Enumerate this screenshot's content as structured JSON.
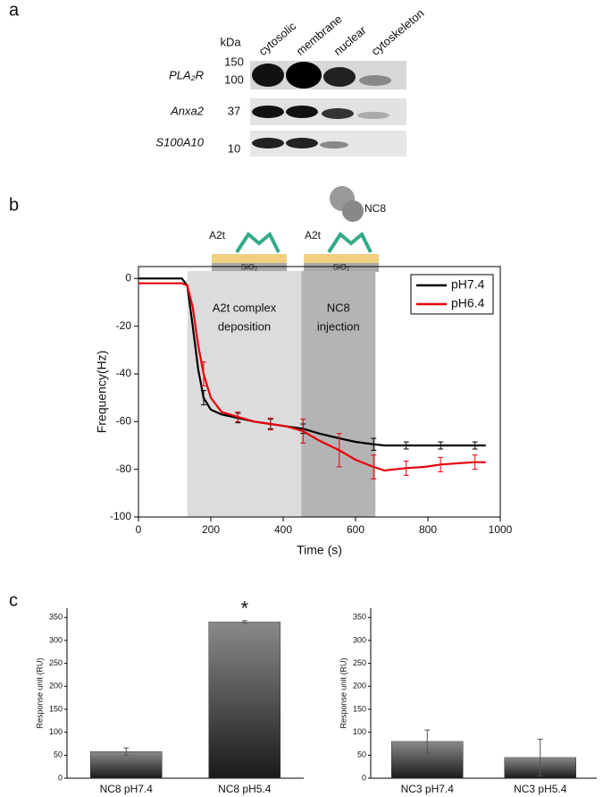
{
  "panel_labels": [
    "a",
    "b",
    "c"
  ],
  "blot": {
    "unit": "kDa",
    "columns": [
      "cytosolic",
      "membrane",
      "nuclear",
      "cytoskeleton"
    ],
    "rows": [
      {
        "label": "PLA₂R",
        "markers": [
          "150",
          "100"
        ]
      },
      {
        "label": "Anxa2",
        "markers": [
          "37"
        ]
      },
      {
        "label": "S100A10",
        "markers": [
          "10"
        ]
      }
    ]
  },
  "chart_data": [
    {
      "type": "line",
      "xlabel": "Time (s)",
      "ylabel": "Frequency(Hz)",
      "x": [
        0,
        120,
        135,
        150,
        165,
        180,
        200,
        230,
        275,
        320,
        365,
        410,
        455,
        500,
        555,
        600,
        650,
        680,
        740,
        790,
        835,
        880,
        930,
        960
      ],
      "series": [
        {
          "name": "pH7.4",
          "color": "#000000",
          "values": [
            0,
            0,
            -3,
            -20,
            -38,
            -50,
            -55,
            -57,
            -58.5,
            -60,
            -61,
            -62,
            -63,
            -65,
            -67,
            -68.5,
            -69.5,
            -70,
            -70,
            -70,
            -70,
            -70,
            -70,
            -70
          ],
          "errors": [
            null,
            null,
            null,
            null,
            null,
            3,
            null,
            null,
            2,
            null,
            2,
            null,
            2,
            null,
            null,
            null,
            2.5,
            null,
            1.5,
            null,
            1.5,
            null,
            1.5,
            null
          ]
        },
        {
          "name": "pH6.4",
          "color": "#e8000b",
          "values": [
            -2,
            -2,
            -3,
            -12,
            -28,
            -40,
            -50,
            -56,
            -58,
            -60,
            -61,
            -62,
            -64,
            -68,
            -72,
            -76,
            -79,
            -80.5,
            -79.5,
            -79,
            -78,
            -77.5,
            -77,
            -77
          ],
          "errors": [
            null,
            null,
            null,
            null,
            null,
            5,
            null,
            null,
            2,
            null,
            2.5,
            null,
            5,
            null,
            7,
            null,
            5,
            null,
            3,
            null,
            3,
            null,
            3,
            null
          ]
        }
      ],
      "regions": [
        {
          "x0": 135,
          "x1": 450,
          "color": "#dcdcdc",
          "label": [
            "A2t complex",
            "deposition"
          ]
        },
        {
          "x0": 450,
          "x1": 655,
          "color": "#b4b4b4",
          "label": [
            "NC8",
            "injection"
          ]
        }
      ],
      "schematic": {
        "protein": "A2t",
        "antibody": "NC8",
        "substrate": "SiO₂"
      },
      "xlim": [
        0,
        1000
      ],
      "xticks": [
        0,
        200,
        400,
        600,
        800,
        1000
      ],
      "ylim": [
        -100,
        5
      ],
      "yticks": [
        -100,
        -80,
        -60,
        -40,
        -20,
        0
      ],
      "legend": "upper right"
    },
    {
      "type": "bar",
      "ylabel": "Response unit (RU)",
      "categories": [
        "NC8 pH7.4",
        "NC8 pH5.4"
      ],
      "values": [
        58,
        340
      ],
      "errors": [
        8,
        3
      ],
      "annotations": [
        null,
        "*"
      ],
      "ylim": [
        0,
        370
      ],
      "yticks": [
        0,
        50,
        100,
        150,
        200,
        250,
        300,
        350
      ]
    },
    {
      "type": "bar",
      "ylabel": "Response unit (RU)",
      "categories": [
        "NC3 pH7.4",
        "NC3 pH5.4"
      ],
      "values": [
        80,
        45
      ],
      "errors": [
        25,
        40
      ],
      "annotations": [
        null,
        null
      ],
      "ylim": [
        0,
        370
      ],
      "yticks": [
        0,
        50,
        100,
        150,
        200,
        250,
        300,
        350
      ]
    }
  ]
}
